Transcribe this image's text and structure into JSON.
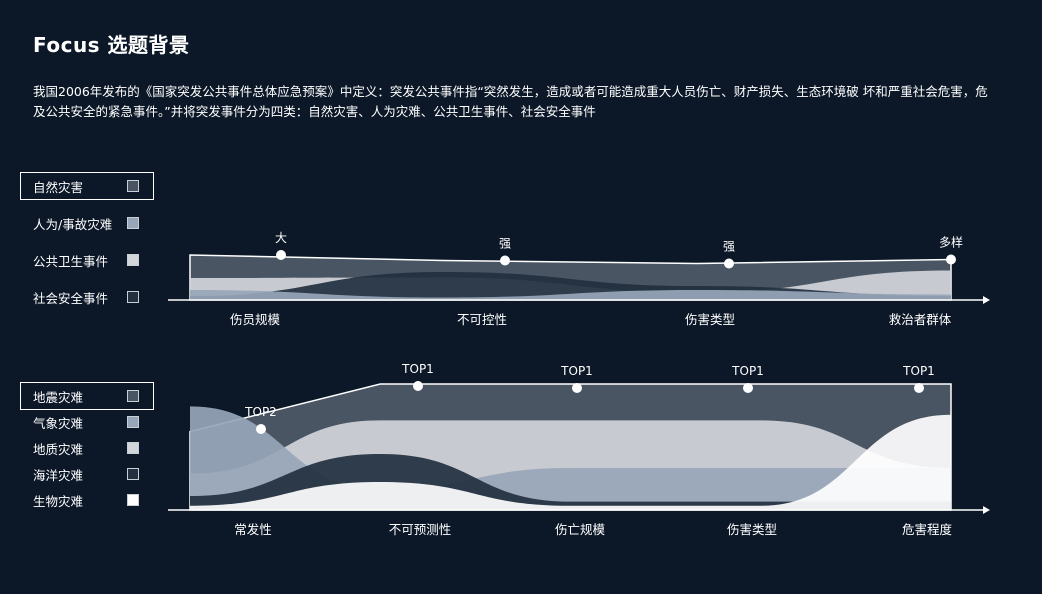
{
  "header": {
    "title": "Focus 选题背景",
    "description": "我国2006年发布的《国家突发公共事件总体应急预案》中定义：突发公共事件指“突然发生，造成或者可能造成重大人员伤亡、财产损失、生态环境破 坏和严重社会危害，危及公共安全的紧急事件。”并将突发事件分为四类：自然灾害、人为灾难、公共卫生事件、社会安全事件"
  },
  "legend1": [
    {
      "label": "自然灾害",
      "color": "#4a5563",
      "active": true
    },
    {
      "label": "人为/事故灾难",
      "color": "#97a6b8",
      "active": false
    },
    {
      "label": "公共卫生事件",
      "color": "#d2d5da",
      "active": false
    },
    {
      "label": "社会安全事件",
      "color": "#22303f",
      "active": false
    }
  ],
  "legend2": [
    {
      "label": "地震灾难",
      "color": "#4a5563",
      "active": true
    },
    {
      "label": "气象灾难",
      "color": "#97a6b8",
      "active": false
    },
    {
      "label": "地质灾难",
      "color": "#d2d5da",
      "active": false
    },
    {
      "label": "海洋灾难",
      "color": "#22303f",
      "active": false
    },
    {
      "label": "生物灾难",
      "color": "#ffffff",
      "active": false
    }
  ],
  "chart_data": [
    {
      "type": "area",
      "categories": [
        "伤员规模",
        "不可控性",
        "伤害类型",
        "救治者群体"
      ],
      "ylim": [
        0,
        10
      ],
      "line_series": "自然灾害",
      "point_labels": [
        "大",
        "强",
        "强",
        "多样"
      ],
      "series": [
        {
          "name": "自然灾害",
          "color": "#4a5563",
          "values": [
            9.0,
            7.9,
            7.3,
            8.1
          ]
        },
        {
          "name": "公共卫生事件",
          "color": "#d2d5da",
          "values": [
            4.4,
            4.5,
            1.5,
            5.9
          ]
        },
        {
          "name": "社会安全事件",
          "color": "#22303f",
          "values": [
            0.8,
            5.6,
            2.8,
            0.8
          ]
        },
        {
          "name": "人为/事故灾难",
          "color": "#97a6b8",
          "values": [
            2.0,
            0.5,
            2.0,
            1.1
          ]
        }
      ]
    },
    {
      "type": "area",
      "categories": [
        "常发性",
        "不可预测性",
        "伤亡规模",
        "伤害类型",
        "危害程度"
      ],
      "ylim": [
        0,
        10
      ],
      "line_series": "地震灾难",
      "point_labels": [
        "TOP2",
        "TOP1",
        "TOP1",
        "TOP1",
        "TOP1"
      ],
      "series": [
        {
          "name": "地震灾难",
          "color": "#4a5563",
          "values": [
            5.6,
            9.0,
            9.0,
            9.0,
            9.0
          ]
        },
        {
          "name": "地质灾难",
          "color": "#d2d5da",
          "values": [
            2.6,
            6.4,
            6.4,
            6.4,
            3.0
          ]
        },
        {
          "name": "气象灾难",
          "color": "#97a6b8",
          "values": [
            7.4,
            1.5,
            3.0,
            3.0,
            3.0
          ]
        },
        {
          "name": "海洋灾难",
          "color": "#22303f",
          "values": [
            1.0,
            4.0,
            0.6,
            0.6,
            0.6
          ]
        },
        {
          "name": "生物灾难",
          "color": "#ffffff",
          "values": [
            0.3,
            2.0,
            0.3,
            0.3,
            6.8
          ]
        }
      ]
    }
  ]
}
